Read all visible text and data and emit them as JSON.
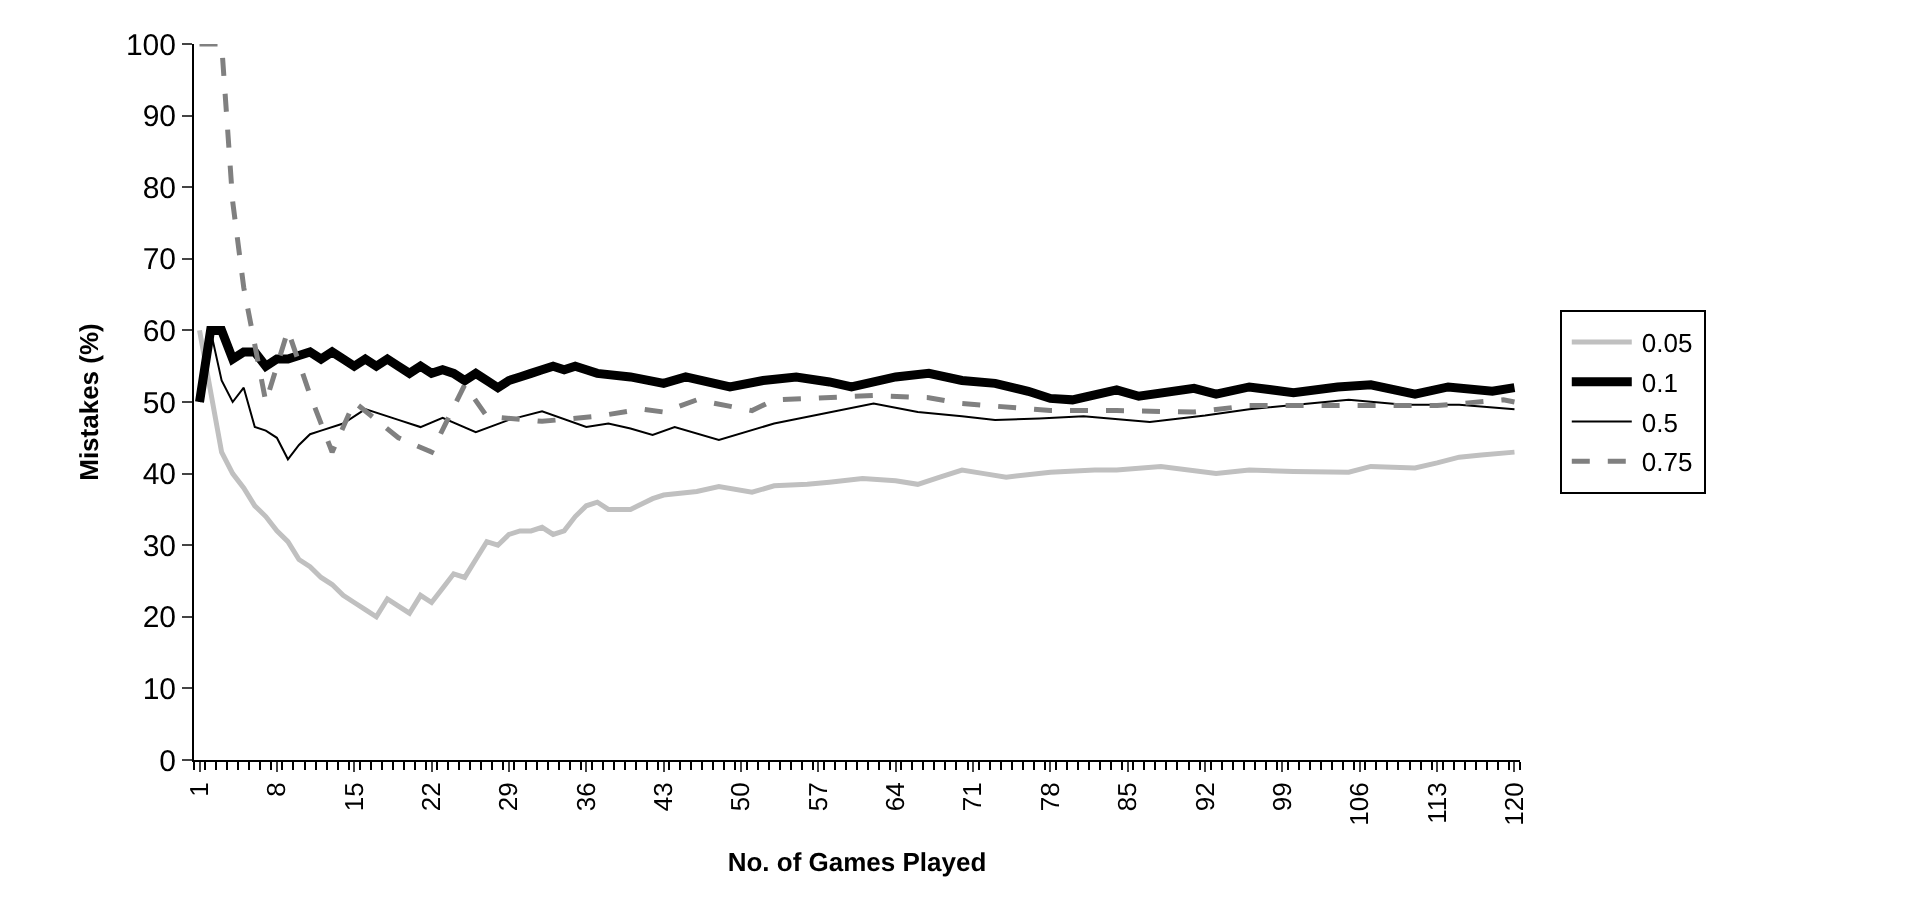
{
  "chart_data": {
    "type": "line",
    "xlabel": "No. of Games Played",
    "ylabel": "Mistakes (%)",
    "xlim": [
      0.5,
      120.5
    ],
    "xticks": [
      1,
      8,
      15,
      22,
      29,
      36,
      43,
      50,
      57,
      64,
      71,
      78,
      85,
      92,
      99,
      106,
      113,
      120
    ],
    "ylim": [
      0,
      100
    ],
    "yticks": [
      0,
      10,
      20,
      30,
      40,
      50,
      60,
      70,
      80,
      90,
      100
    ],
    "grid": false,
    "legend": "right",
    "marker": "none",
    "series": [
      {
        "name": "0.05",
        "color": "#c0c0c0",
        "line_style": "solid",
        "x": [
          1,
          3,
          4,
          5,
          6,
          7,
          8,
          9,
          10,
          11,
          12,
          13,
          14,
          15,
          16,
          17,
          18,
          19,
          20,
          21,
          22,
          23,
          24,
          25,
          26,
          27,
          28,
          29,
          30,
          31,
          32,
          33,
          34,
          35,
          36,
          37,
          38,
          40,
          42,
          43,
          46,
          48,
          51,
          53,
          56,
          58,
          61,
          64,
          66,
          68,
          70,
          72,
          74,
          78,
          82,
          84,
          88,
          93,
          96,
          100,
          105,
          107,
          111,
          113,
          115,
          117,
          120
        ],
        "values": [
          60,
          43,
          40,
          38,
          35.5,
          34,
          32,
          30.5,
          28,
          27,
          25.5,
          24.5,
          23,
          22,
          21,
          20,
          22.5,
          21.5,
          20.5,
          23,
          22,
          24,
          26,
          25.5,
          28,
          30.5,
          30,
          31.5,
          32,
          32,
          32.5,
          31.5,
          32,
          34,
          35.5,
          36,
          35,
          35,
          36.5,
          37,
          37.5,
          38.2,
          37.4,
          38.3,
          38.5,
          38.8,
          39.3,
          39,
          38.5,
          39.5,
          40.5,
          40,
          39.5,
          40.2,
          40.5,
          40.5,
          41,
          40,
          40.5,
          40.3,
          40.2,
          41,
          40.8,
          41.5,
          42.3,
          42.6,
          43
        ]
      },
      {
        "name": "0.1",
        "color": "#000000",
        "line_style": "solid",
        "x": [
          1,
          2,
          3,
          4,
          5,
          6,
          7,
          8,
          9,
          10,
          11,
          12,
          13,
          14,
          15,
          16,
          17,
          18,
          19,
          20,
          21,
          22,
          23,
          24,
          25,
          26,
          27,
          28,
          29,
          30,
          31,
          32,
          33,
          34,
          35,
          36,
          37,
          40,
          43,
          45,
          49,
          52,
          55,
          58,
          60,
          64,
          67,
          70,
          73,
          76,
          78,
          80,
          84,
          86,
          91,
          93,
          96,
          100,
          104,
          107,
          111,
          114,
          118,
          120
        ],
        "values": [
          50,
          60,
          60,
          56,
          57,
          57,
          55,
          56,
          56,
          56.5,
          57,
          56,
          57,
          56,
          55,
          56,
          55,
          56,
          55,
          54,
          55,
          54,
          54.5,
          54,
          53,
          54,
          53,
          52,
          53,
          53.5,
          54,
          54.5,
          55,
          54.5,
          55,
          54.5,
          54,
          53.5,
          52.6,
          53.5,
          52.1,
          53,
          53.5,
          52.8,
          52.1,
          53.5,
          54,
          53,
          52.6,
          51.5,
          50.5,
          50.3,
          51.7,
          50.8,
          51.9,
          51.1,
          52.1,
          51.3,
          52.1,
          52.4,
          51.1,
          52.1,
          51.5,
          52
        ]
      },
      {
        "name": "0.5",
        "color": "#000000",
        "line_style": "solid",
        "x": [
          1,
          2,
          3,
          4,
          5,
          6,
          7,
          8,
          9,
          10,
          11,
          12,
          14,
          16,
          19,
          21,
          23,
          26,
          29,
          32,
          36,
          38,
          40,
          42,
          44,
          48,
          53,
          62,
          66,
          70,
          73,
          77,
          81,
          87,
          92,
          96,
          105,
          110,
          115,
          120
        ],
        "values": [
          50,
          60,
          53,
          50,
          52,
          46.5,
          46,
          45,
          42,
          44,
          45.5,
          46,
          47,
          49,
          47.5,
          46.5,
          47.8,
          45.8,
          47.5,
          48.7,
          46.5,
          47,
          46.3,
          45.4,
          46.5,
          44.7,
          47,
          49.8,
          48.6,
          48,
          47.5,
          47.7,
          48,
          47.2,
          48.1,
          49,
          50.3,
          49.6,
          49.6,
          49
        ]
      },
      {
        "name": "0.75",
        "color": "#808080",
        "line_style": "dashed",
        "x": [
          1,
          2,
          3,
          4,
          5,
          6,
          7,
          9,
          11,
          13,
          15,
          19,
          22,
          25,
          27,
          32,
          37,
          41,
          43,
          46,
          51,
          53,
          62,
          67,
          70,
          78,
          84,
          91,
          96,
          102,
          113,
          119,
          120
        ],
        "values": [
          100,
          100,
          100,
          78,
          66,
          58,
          50,
          60,
          51,
          43,
          50,
          45,
          43,
          52.4,
          48,
          47.3,
          48,
          49,
          48.6,
          50.3,
          48.8,
          50.3,
          50.9,
          50.6,
          49.8,
          48.8,
          48.8,
          48.6,
          49.5,
          49.5,
          49.5,
          50.3,
          50
        ]
      }
    ]
  }
}
